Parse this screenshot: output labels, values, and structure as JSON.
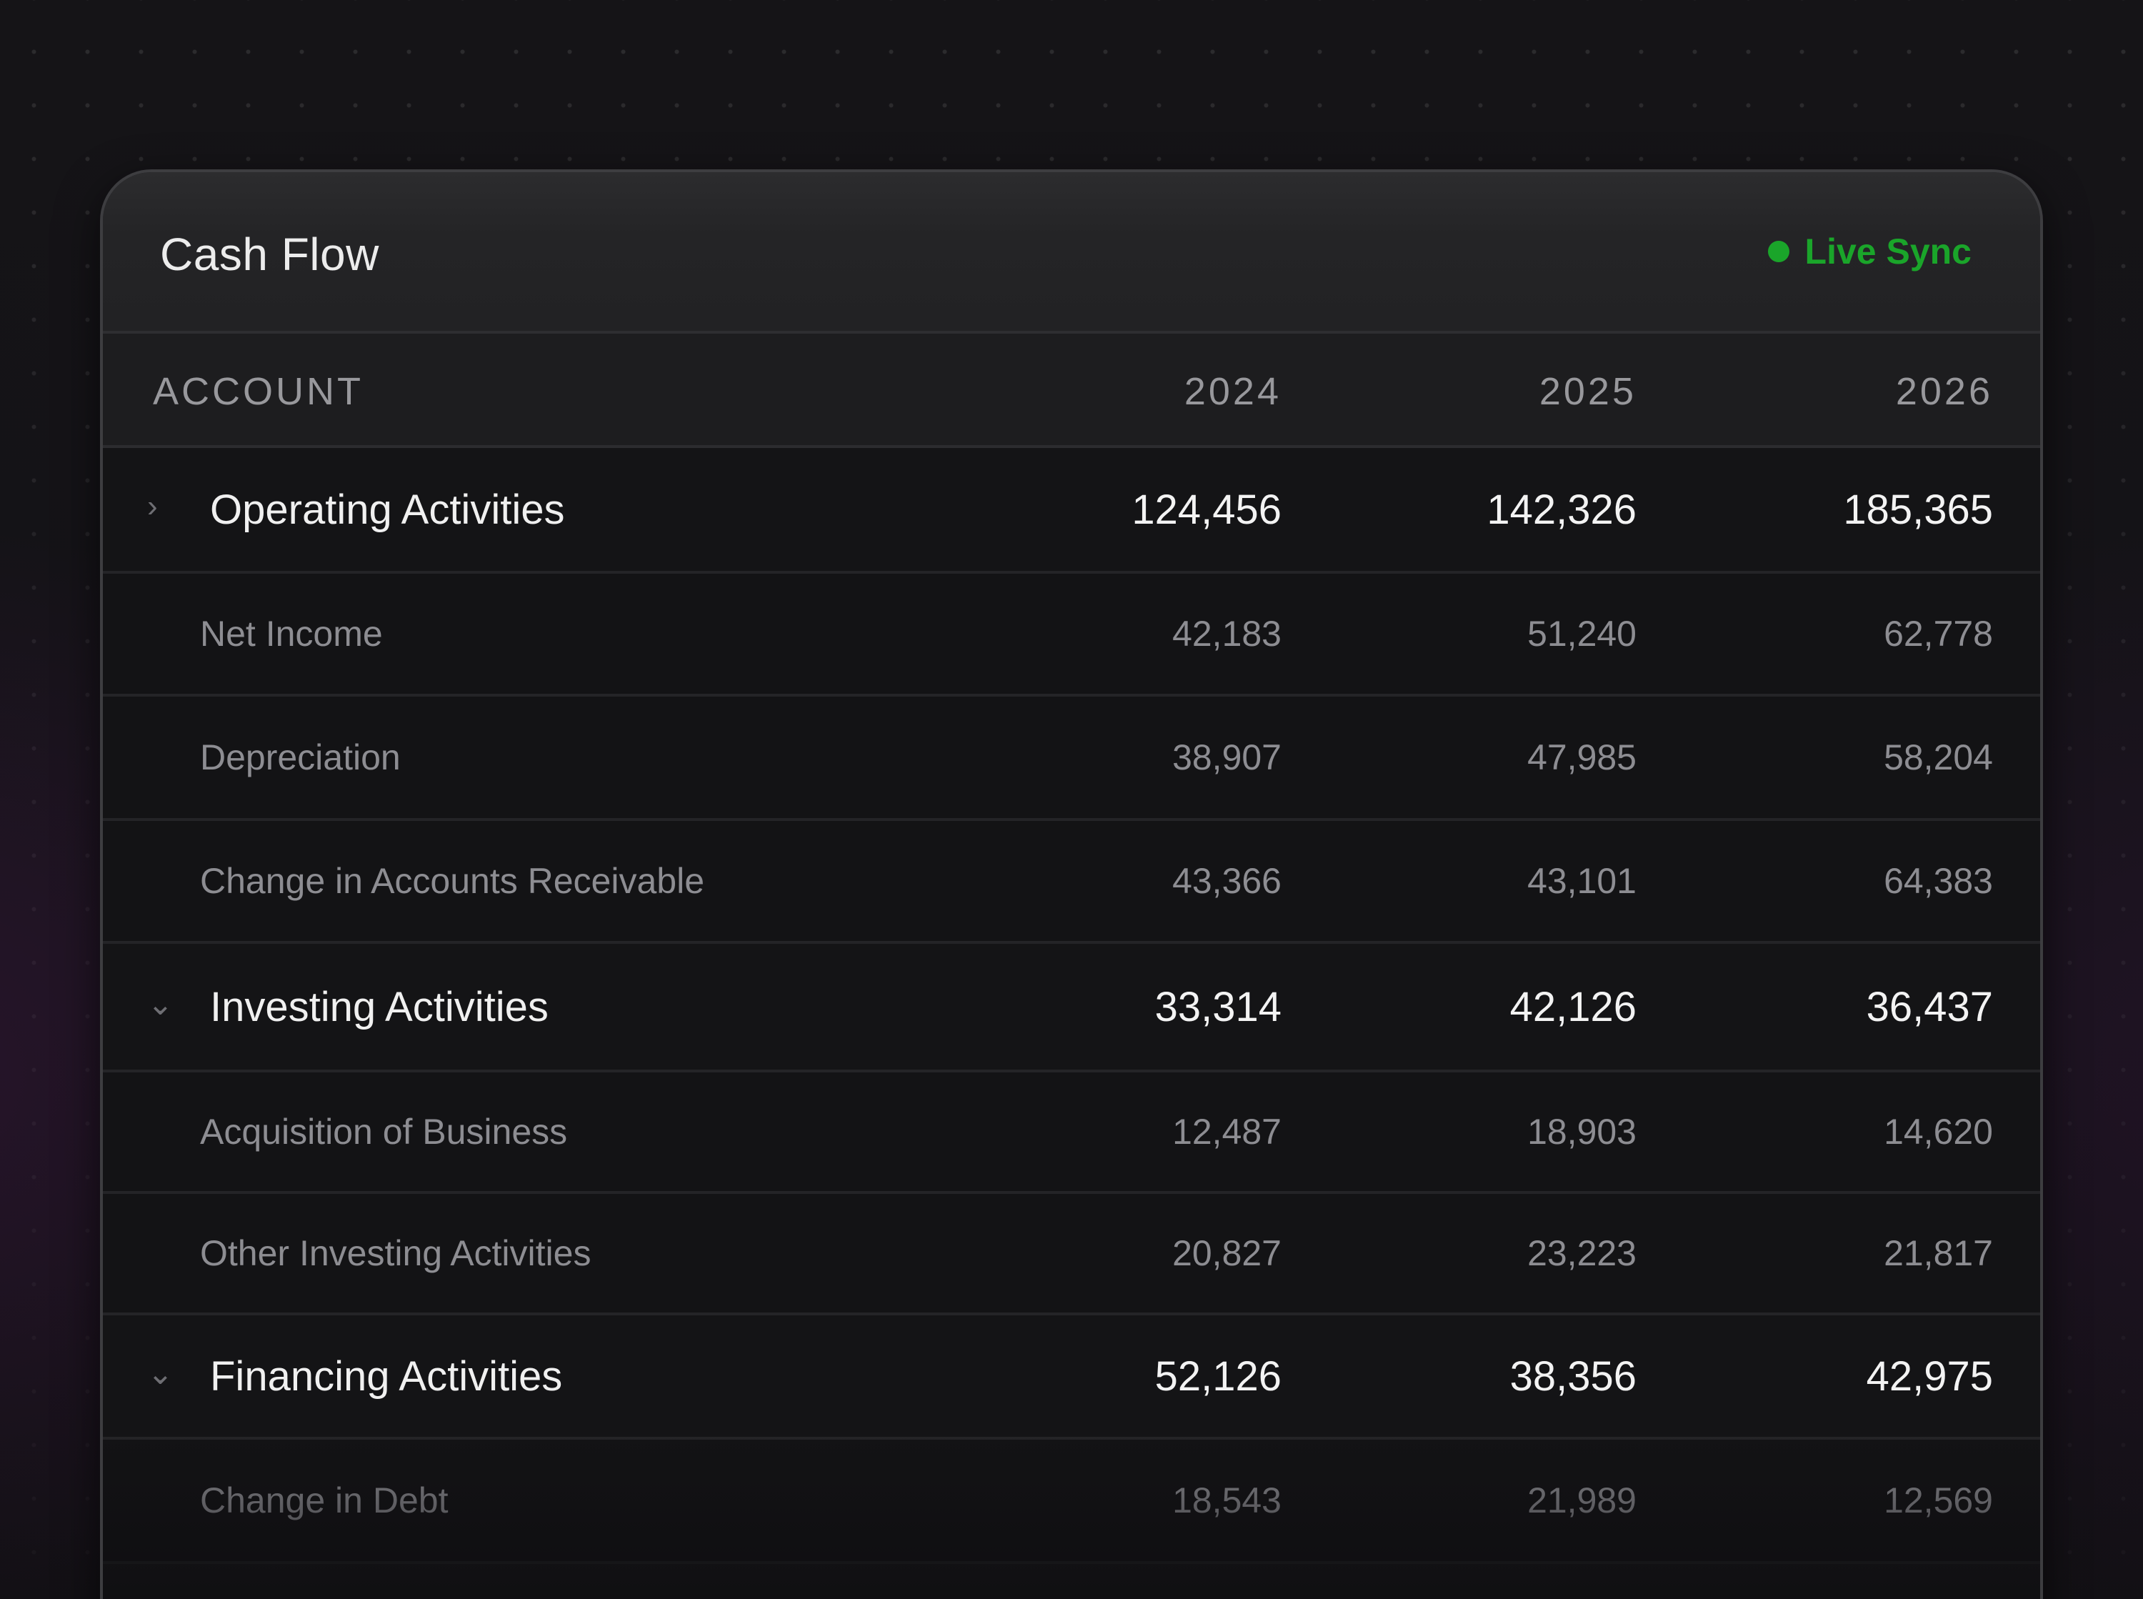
{
  "card": {
    "title": "Cash Flow",
    "status": {
      "label": "Live Sync",
      "color": "#1aa52a"
    }
  },
  "table": {
    "columns": [
      "ACCOUNT",
      "2024",
      "2025",
      "2026"
    ],
    "rows": [
      {
        "type": "group",
        "expander": "chevron-right-icon",
        "label": "Operating Activities",
        "values": [
          "124,456",
          "142,326",
          "185,365"
        ]
      },
      {
        "type": "item",
        "label": "Net Income",
        "values": [
          "42,183",
          "51,240",
          "62,778"
        ]
      },
      {
        "type": "item",
        "label": "Depreciation",
        "values": [
          "38,907",
          "47,985",
          "58,204"
        ]
      },
      {
        "type": "item",
        "label": "Change in Accounts Receivable",
        "values": [
          "43,366",
          "43,101",
          "64,383"
        ]
      },
      {
        "type": "group",
        "expander": "chevron-down-icon",
        "label": "Investing Activities",
        "values": [
          "33,314",
          "42,126",
          "36,437"
        ]
      },
      {
        "type": "item",
        "label": "Acquisition of Business",
        "values": [
          "12,487",
          "18,903",
          "14,620"
        ]
      },
      {
        "type": "item",
        "label": "Other Investing Activities",
        "values": [
          "20,827",
          "23,223",
          "21,817"
        ]
      },
      {
        "type": "group",
        "expander": "chevron-down-icon",
        "label": "Financing Activities",
        "values": [
          "52,126",
          "38,356",
          "42,975"
        ]
      },
      {
        "type": "item",
        "label": "Change in Debt",
        "values": [
          "18,543",
          "21,989",
          "12,569"
        ]
      }
    ]
  }
}
